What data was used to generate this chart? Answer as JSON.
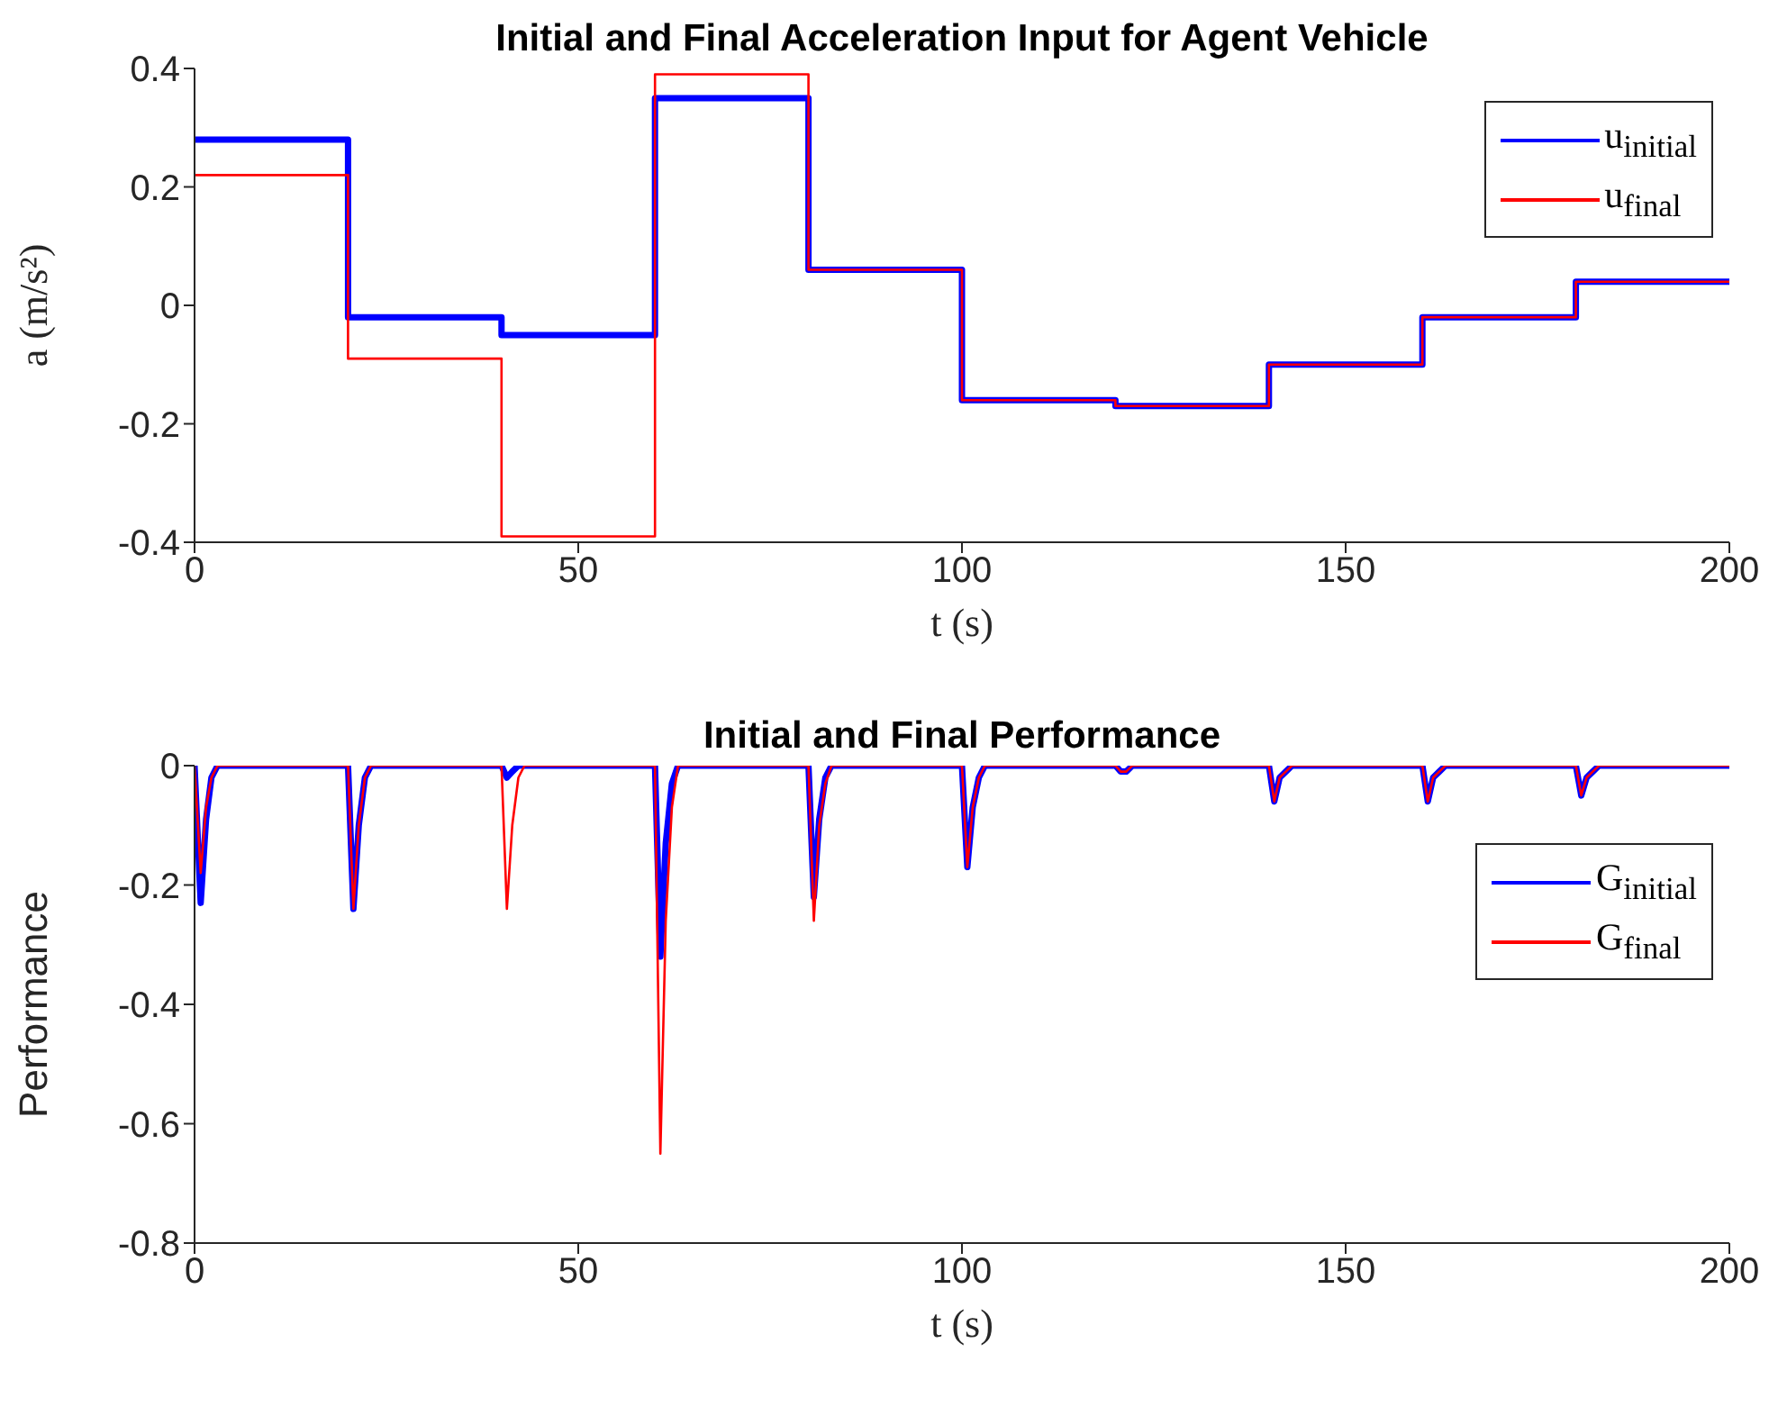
{
  "chart_data": [
    {
      "type": "step",
      "title": "Initial and Final Acceleration Input for Agent Vehicle",
      "xlabel": "t (s)",
      "ylabel": "a (m/s²)",
      "x": [
        0,
        20,
        40,
        60,
        80,
        100,
        120,
        140,
        160,
        180,
        200
      ],
      "xlim": [
        0,
        200
      ],
      "xticks": [
        0,
        50,
        100,
        150,
        200
      ],
      "ylim": [
        -0.4,
        0.4
      ],
      "yticks": [
        -0.4,
        -0.2,
        0,
        0.2,
        0.4
      ],
      "legend": "top right",
      "series": [
        {
          "name": "u$_{initial}$",
          "color": "#0000ff",
          "values": [
            0.28,
            -0.02,
            -0.05,
            0.35,
            0.06,
            -0.16,
            -0.17,
            -0.1,
            -0.02,
            0.04,
            0.04
          ]
        },
        {
          "name": "u$_{final}$",
          "color": "#ff0000",
          "values": [
            0.22,
            -0.09,
            -0.39,
            0.39,
            0.06,
            -0.16,
            -0.17,
            -0.1,
            -0.02,
            0.04,
            0.04
          ]
        }
      ]
    },
    {
      "type": "line",
      "title": "Initial and Final Performance",
      "xlabel": "t (s)",
      "ylabel": "Performance",
      "x": [
        0,
        0.8,
        1.5,
        2.2,
        3,
        20,
        20.7,
        21.4,
        22.2,
        23,
        40,
        40.7,
        41.4,
        42.2,
        43,
        60,
        60.7,
        61.4,
        62.2,
        63,
        80,
        80.7,
        81.4,
        82.2,
        83,
        100,
        100.7,
        101.4,
        102.2,
        103,
        120,
        120.7,
        121.4,
        122.2,
        123,
        140,
        140.7,
        141.4,
        142.2,
        143,
        160,
        160.7,
        161.4,
        162.2,
        163,
        180,
        180.7,
        181.4,
        182.2,
        183,
        200
      ],
      "xlim": [
        0,
        200
      ],
      "xticks": [
        0,
        50,
        100,
        150,
        200
      ],
      "ylim": [
        -0.8,
        0
      ],
      "yticks": [
        -0.8,
        -0.6,
        -0.4,
        -0.2,
        0
      ],
      "legend": "right",
      "series": [
        {
          "name": "G$_{initial}$",
          "color": "#0000ff",
          "values": [
            0,
            -0.23,
            -0.09,
            -0.02,
            0,
            0,
            -0.24,
            -0.1,
            -0.02,
            0,
            0,
            -0.02,
            -0.01,
            0,
            0,
            0,
            -0.32,
            -0.13,
            -0.03,
            0,
            0,
            -0.22,
            -0.09,
            -0.02,
            0,
            0,
            -0.17,
            -0.07,
            -0.02,
            0,
            0,
            -0.01,
            -0.01,
            0,
            0,
            0,
            -0.06,
            -0.02,
            -0.01,
            0,
            0,
            -0.06,
            -0.02,
            -0.01,
            0,
            0,
            -0.05,
            -0.02,
            -0.01,
            0,
            0
          ]
        },
        {
          "name": "G$_{final}$",
          "color": "#ff0000",
          "values": [
            0,
            -0.18,
            -0.07,
            -0.02,
            0,
            0,
            -0.24,
            -0.1,
            -0.02,
            0,
            0,
            -0.24,
            -0.1,
            -0.02,
            0,
            0,
            -0.65,
            -0.26,
            -0.07,
            0,
            0,
            -0.26,
            -0.1,
            -0.03,
            0,
            0,
            -0.17,
            -0.07,
            -0.02,
            0,
            0,
            -0.01,
            -0.01,
            0,
            0,
            0,
            -0.06,
            -0.02,
            -0.01,
            0,
            0,
            -0.06,
            -0.02,
            -0.01,
            0,
            0,
            -0.05,
            -0.02,
            -0.01,
            0,
            0
          ]
        }
      ]
    }
  ]
}
